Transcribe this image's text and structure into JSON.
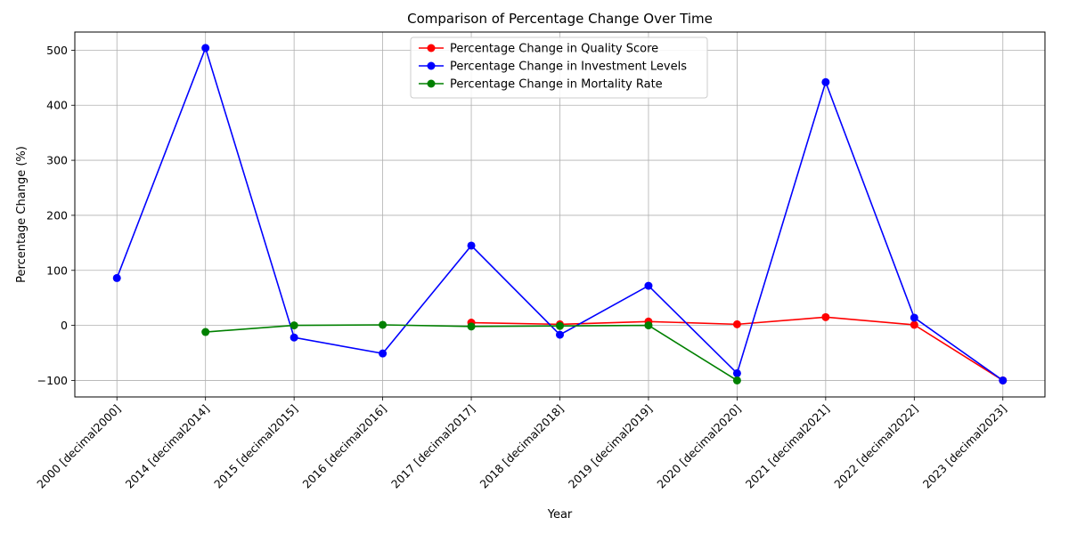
{
  "chart_data": {
    "type": "line",
    "title": "Comparison of Percentage Change Over Time",
    "xlabel": "Year",
    "ylabel": "Percentage Change (%)",
    "categories": [
      "2000 [decimal2000]",
      "2014 [decimal2014]",
      "2015 [decimal2015]",
      "2016 [decimal2016]",
      "2017 [decimal2017]",
      "2018 [decimal2018]",
      "2019 [decimal2019]",
      "2020 [decimal2020]",
      "2021 [decimal2021]",
      "2022 [decimal2022]",
      "2023 [decimal2023]"
    ],
    "yticks": [
      -100,
      0,
      100,
      200,
      300,
      400,
      500
    ],
    "ylim": [
      -130,
      533
    ],
    "grid": true,
    "legend_position": "upper center",
    "series": [
      {
        "name": "Percentage Change in Quality Score",
        "color": "#ff0000",
        "values": [
          null,
          null,
          null,
          null,
          5,
          2,
          7,
          2,
          15,
          1,
          -100
        ]
      },
      {
        "name": "Percentage Change in Investment Levels",
        "color": "#0000ff",
        "values": [
          86,
          504,
          -22,
          -51,
          145,
          -17,
          72,
          -87,
          442,
          14,
          -100
        ]
      },
      {
        "name": "Percentage Change in Mortality Rate",
        "color": "#008000",
        "values": [
          null,
          -12,
          0,
          1,
          -2,
          -1,
          0,
          -100,
          null,
          null,
          null
        ]
      }
    ]
  }
}
